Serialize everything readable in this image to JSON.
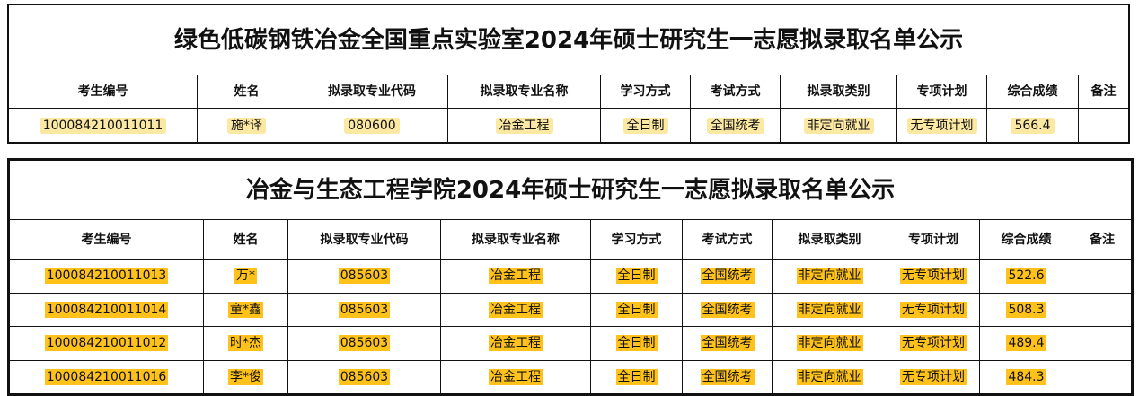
{
  "table1": {
    "title": "绿色低碳钢铁冶金全国重点实验室2024年硕士研究生一志愿拟录取名单公示",
    "headers": [
      "考生编号",
      "姓名",
      "拟录取专业代码",
      "拟录取专业名称",
      "学习方式",
      "考试方式",
      "拟录取类别",
      "专项计划",
      "综合成绩",
      "备注"
    ],
    "rows": [
      [
        "100084210011011",
        "施*译",
        "080600",
        "冶金工程",
        "全日制",
        "全国统考",
        "非定向就业",
        "无专项计划",
        "566.4",
        ""
      ]
    ]
  },
  "table2": {
    "title": "冶金与生态工程学院2024年硕士研究生一志愿拟录取名单公示",
    "headers": [
      "考生编号",
      "姓名",
      "拟录取专业代码",
      "拟录取专业名称",
      "学习方式",
      "考试方式",
      "拟录取类别",
      "专项计划",
      "综合成绩",
      "备注"
    ],
    "rows": [
      [
        "100084210011013",
        "万*",
        "085603",
        "冶金工程",
        "全日制",
        "全国统考",
        "非定向就业",
        "无专项计划",
        "522.6",
        ""
      ],
      [
        "100084210011014",
        "童*鑫",
        "085603",
        "冶金工程",
        "全日制",
        "全国统考",
        "非定向就业",
        "无专项计划",
        "508.3",
        ""
      ],
      [
        "100084210011012",
        "时*杰",
        "085603",
        "冶金工程",
        "全日制",
        "全国统考",
        "非定向就业",
        "无专项计划",
        "489.4",
        ""
      ],
      [
        "100084210011016",
        "李*俊",
        "085603",
        "冶金工程",
        "全日制",
        "全国统考",
        "非定向就业",
        "无专项计划",
        "484.3",
        ""
      ]
    ]
  },
  "colors": {
    "highlight_table1": "#fbe8a3",
    "highlight_table2": "#ffc21a"
  }
}
